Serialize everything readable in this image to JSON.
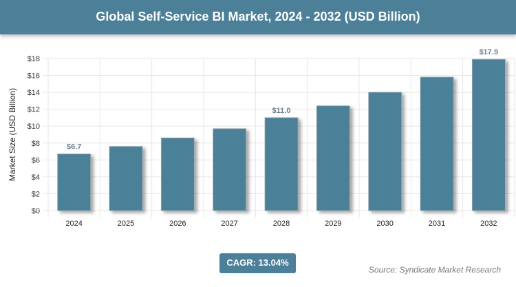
{
  "chart_data": {
    "type": "bar",
    "title": "Global Self-Service BI Market, 2024 - 2032 (USD Billion)",
    "ylabel": "Market Size (USD Billion)",
    "xlabel": "",
    "categories": [
      "2024",
      "2025",
      "2026",
      "2027",
      "2028",
      "2029",
      "2030",
      "2031",
      "2032"
    ],
    "values": [
      6.7,
      7.6,
      8.6,
      9.7,
      11.0,
      12.4,
      14.0,
      15.8,
      17.9
    ],
    "data_labels": {
      "0": "$6.7",
      "4": "$11.0",
      "8": "$17.9"
    },
    "ylim": [
      0,
      18
    ],
    "yticks": [
      "$0",
      "$2",
      "$4",
      "$6",
      "$8",
      "$10",
      "$12",
      "$14",
      "$16",
      "$18"
    ],
    "grid": true,
    "bar_color": "#4c8099"
  },
  "cagr": "CAGR: 13.04%",
  "source": "Source: Syndicate Market Research"
}
